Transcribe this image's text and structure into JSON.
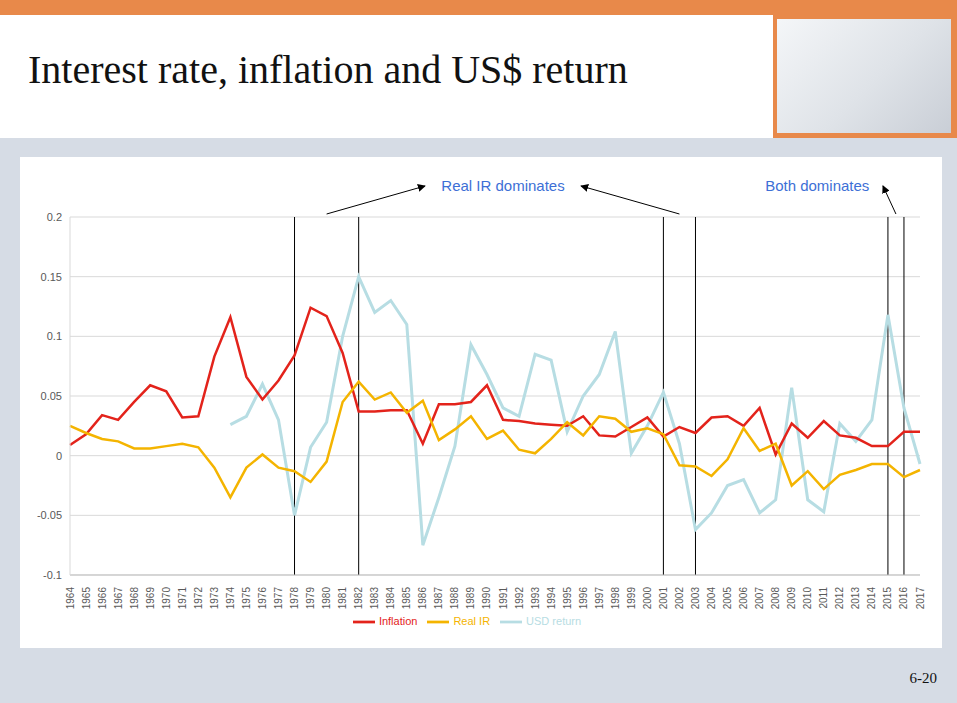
{
  "slide": {
    "title": "Interest rate, inflation and US$ return",
    "page_number": "6-20"
  },
  "chart_data": {
    "type": "line",
    "categories": [
      "1964",
      "1965",
      "1966",
      "1967",
      "1968",
      "1969",
      "1970",
      "1971",
      "1972",
      "1973",
      "1974",
      "1975",
      "1976",
      "1977",
      "1978",
      "1979",
      "1980",
      "1981",
      "1982",
      "1983",
      "1984",
      "1985",
      "1986",
      "1987",
      "1988",
      "1989",
      "1990",
      "1991",
      "1992",
      "1993",
      "1994",
      "1995",
      "1996",
      "1997",
      "1998",
      "1999",
      "2000",
      "2001",
      "2002",
      "2003",
      "2004",
      "2005",
      "2006",
      "2007",
      "2008",
      "2009",
      "2010",
      "2011",
      "2012",
      "2013",
      "2014",
      "2015",
      "2016",
      "2017"
    ],
    "series": [
      {
        "name": "USD return",
        "color": "#b7dde3",
        "values": [
          null,
          null,
          null,
          null,
          null,
          null,
          null,
          null,
          null,
          null,
          0.026,
          0.033,
          0.06,
          0.03,
          -0.05,
          0.007,
          0.028,
          0.1,
          0.15,
          0.12,
          0.13,
          0.11,
          -0.075,
          -0.035,
          0.008,
          0.093,
          0.068,
          0.04,
          0.033,
          0.085,
          0.08,
          0.02,
          0.05,
          0.068,
          0.104,
          0.002,
          0.025,
          0.053,
          0.01,
          -0.062,
          -0.048,
          -0.025,
          -0.02,
          -0.048,
          -0.037,
          0.057,
          -0.037,
          -0.047,
          0.027,
          0.012,
          0.03,
          0.118,
          0.04,
          -0.007
        ]
      },
      {
        "name": "Inflation",
        "color": "#e3231b",
        "values": [
          0.009,
          0.018,
          0.034,
          0.03,
          0.045,
          0.059,
          0.054,
          0.032,
          0.033,
          0.083,
          0.116,
          0.066,
          0.047,
          0.063,
          0.084,
          0.124,
          0.117,
          0.086,
          0.037,
          0.037,
          0.038,
          0.038,
          0.01,
          0.043,
          0.043,
          0.045,
          0.059,
          0.03,
          0.029,
          0.027,
          0.026,
          0.025,
          0.033,
          0.017,
          0.016,
          0.024,
          0.032,
          0.016,
          0.024,
          0.019,
          0.032,
          0.033,
          0.025,
          0.04,
          0.001,
          0.027,
          0.015,
          0.029,
          0.017,
          0.015,
          0.008,
          0.008,
          0.02,
          0.02
        ]
      },
      {
        "name": "Real IR",
        "color": "#f4b400",
        "values": [
          0.025,
          0.019,
          0.014,
          0.012,
          0.006,
          0.006,
          0.008,
          0.01,
          0.007,
          -0.01,
          -0.035,
          -0.01,
          0.001,
          -0.01,
          -0.013,
          -0.022,
          -0.005,
          0.045,
          0.062,
          0.047,
          0.053,
          0.036,
          0.046,
          0.013,
          0.022,
          0.033,
          0.014,
          0.021,
          0.005,
          0.002,
          0.014,
          0.028,
          0.017,
          0.033,
          0.031,
          0.02,
          0.023,
          0.018,
          -0.008,
          -0.009,
          -0.017,
          -0.003,
          0.023,
          0.004,
          0.01,
          -0.025,
          -0.013,
          -0.028,
          -0.016,
          -0.012,
          -0.007,
          -0.007,
          -0.018,
          -0.012
        ]
      }
    ],
    "ylim": [
      -0.1,
      0.2
    ],
    "yticks": [
      -0.1,
      -0.05,
      0,
      0.05,
      0.1,
      0.15,
      0.2
    ],
    "grid": true,
    "legend": "bottom",
    "vertical_lines": [
      "1978",
      "1982",
      "2001",
      "2003",
      "2015",
      "2016"
    ],
    "annotations": [
      {
        "text": "Real IR dominates",
        "targets": [
          [
            "1978",
            "1982"
          ],
          [
            "2001",
            "2003"
          ]
        ]
      },
      {
        "text": "Both dominates",
        "targets": [
          [
            "2015",
            "2016"
          ]
        ]
      }
    ]
  }
}
